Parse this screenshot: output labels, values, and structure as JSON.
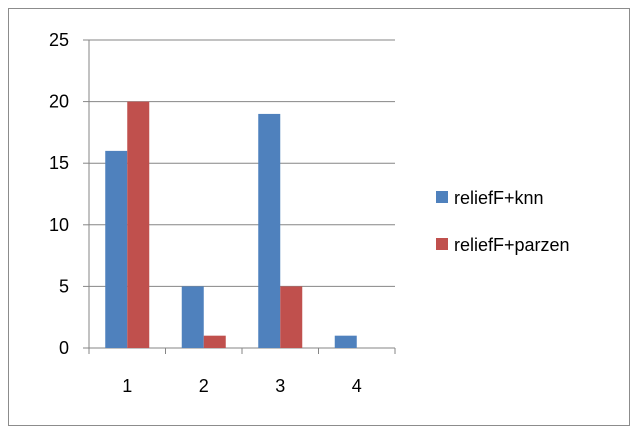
{
  "chart_data": {
    "type": "bar",
    "categories": [
      "1",
      "2",
      "3",
      "4"
    ],
    "series": [
      {
        "name": "reliefF+knn",
        "values": [
          16,
          5,
          19,
          1
        ],
        "color": "#4f81bd"
      },
      {
        "name": "reliefF+parzen",
        "values": [
          20,
          1,
          5,
          0
        ],
        "color": "#c0504d"
      }
    ],
    "ylim": [
      0,
      25
    ],
    "yticks": [
      "0",
      "5",
      "10",
      "15",
      "20",
      "25"
    ],
    "grid": true,
    "legend_position": "right"
  }
}
